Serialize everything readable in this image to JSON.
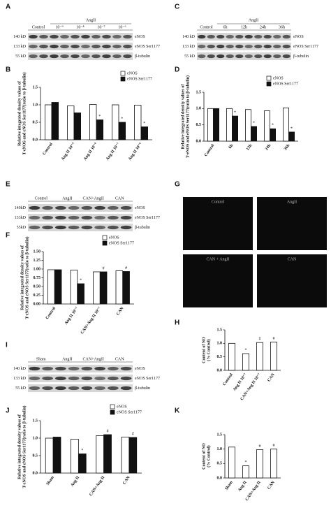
{
  "blots": [
    {
      "label": "A",
      "columns": [
        "Control"
      ],
      "group": {
        "label": "AngII",
        "columns": [
          "10⁻⁹",
          "10⁻⁸",
          "10⁻⁷",
          "10⁻⁶"
        ]
      },
      "left_labels": [
        "140 kD",
        "133 kD",
        "55 kD"
      ],
      "right_labels": [
        "eNOS",
        "eNOS Ser1177",
        "β-tubulin"
      ]
    },
    {
      "label": "C",
      "columns": [
        "Control"
      ],
      "group": {
        "label": "AngII",
        "columns": [
          "6h",
          "12h",
          "24h",
          "36h"
        ]
      },
      "left_labels": [
        "140 kD",
        "133 kD",
        "55 kD"
      ],
      "right_labels": [
        "eNOS",
        "eNOS Ser1177",
        "β-tubulin"
      ]
    },
    {
      "label": "E",
      "columns": [
        "Control",
        "AngII",
        "CAN+AngII",
        "CAN"
      ],
      "left_labels": [
        "140kD",
        "133kD",
        "55kD"
      ],
      "right_labels": [
        "eNOS",
        "eNOS Ser1177",
        "β-tubulin"
      ]
    },
    {
      "label": "I",
      "columns": [
        "Sham",
        "AngII",
        "CAN+AngII",
        "CAN"
      ],
      "left_labels": [
        "140 kD",
        "133 kD",
        "55 kD"
      ],
      "right_labels": [
        "eNOS",
        "eNOS Ser1177",
        "β-tubulin"
      ]
    }
  ],
  "images": {
    "label": "G",
    "captions": [
      "Control",
      "AngII",
      "CAN + AngII",
      "CAN"
    ]
  },
  "chart_data": [
    {
      "type": "bar",
      "label": "B",
      "ylabel": [
        "Relative integrated density values of",
        "T-eNOS and eNOS Ser1177(ratio to β-tubulin)"
      ],
      "categories": [
        "Control",
        "Ang II 10⁻⁹",
        "Ang II 10⁻⁸",
        "Ang II 10⁻⁷",
        "Ang II 10⁻⁶"
      ],
      "series": [
        {
          "name": "eNOS",
          "color": "#ffffff",
          "values": [
            1.0,
            0.97,
            1.01,
            1.0,
            0.99
          ],
          "labels": [
            null,
            null,
            null,
            null,
            null
          ]
        },
        {
          "name": "eNOS Ser1177",
          "color": "#111111",
          "values": [
            1.07,
            0.77,
            0.57,
            0.5,
            0.37
          ],
          "labels": [
            null,
            null,
            "*",
            "*",
            "*"
          ]
        }
      ],
      "ylim": [
        0,
        1.5
      ],
      "yticks": [
        {
          "value": 0,
          "label": "0.0"
        },
        {
          "value": 0.5,
          "label": "0.5"
        },
        {
          "value": 1,
          "label": "1.0"
        },
        {
          "value": 1.5,
          "label": "1.5"
        }
      ],
      "legend": "top-right"
    },
    {
      "type": "bar",
      "label": "D",
      "ylabel": [
        "Relative integrated density values of",
        "T-eNOS and eNOS Ser1177(ratio to β-tubulin)"
      ],
      "categories": [
        "Control",
        "6h",
        "12h",
        "24h",
        "36h"
      ],
      "series": [
        {
          "name": "eNOS",
          "color": "#ffffff",
          "values": [
            1.0,
            1.0,
            0.97,
            0.93,
            1.02
          ],
          "labels": [
            null,
            null,
            null,
            null,
            null
          ]
        },
        {
          "name": "eNOS Ser1177",
          "color": "#111111",
          "values": [
            1.0,
            0.77,
            0.45,
            0.38,
            0.28
          ],
          "labels": [
            null,
            "*",
            "*",
            "*",
            "*"
          ]
        }
      ],
      "ylim": [
        0,
        1.5
      ],
      "yticks": [
        {
          "value": 0,
          "label": "0.0"
        },
        {
          "value": 0.5,
          "label": "0.5"
        },
        {
          "value": 1,
          "label": "1.0"
        },
        {
          "value": 1.5,
          "label": "1.5"
        }
      ],
      "legend": "top-right"
    },
    {
      "type": "bar",
      "label": "F",
      "ylabel": [
        "Relative integrated density values of",
        "T-eNOS and eNOS Ser1177(ratio to β-tubulin)"
      ],
      "categories": [
        "Control",
        "Ang II 10⁻⁷",
        "CAN+Ang II 10⁻⁷",
        "CAN"
      ],
      "series": [
        {
          "name": "eNOS",
          "color": "#ffffff",
          "values": [
            0.98,
            0.97,
            0.92,
            0.95
          ],
          "labels": [
            null,
            null,
            null,
            null
          ]
        },
        {
          "name": "eNOS Ser1177",
          "color": "#111111",
          "values": [
            0.98,
            0.58,
            0.92,
            0.93
          ],
          "labels": [
            null,
            "*",
            "#",
            "#"
          ]
        }
      ],
      "ylim": [
        0,
        1.5
      ],
      "yticks": [
        {
          "value": 0,
          "label": "0.00"
        },
        {
          "value": 0.25,
          "label": "0.25"
        },
        {
          "value": 0.5,
          "label": "0.50"
        },
        {
          "value": 0.75,
          "label": "0.75"
        },
        {
          "value": 1,
          "label": "1.00"
        },
        {
          "value": 1.25,
          "label": "1.25"
        },
        {
          "value": 1.5,
          "label": "1.50"
        }
      ],
      "legend": "top-right"
    },
    {
      "type": "bar",
      "label": "H",
      "ylabel": [
        "Content of NO",
        "(% Control)"
      ],
      "categories": [
        "Control",
        "Ang II 10⁻⁷",
        "CAN+Ang II 10⁻⁷",
        "CAN"
      ],
      "values": [
        1.0,
        0.62,
        1.03,
        1.05
      ],
      "labels": [
        null,
        "*",
        "#",
        "#"
      ],
      "color": "#ffffff",
      "ylim": [
        0,
        1.5
      ],
      "yticks": [
        {
          "value": 0,
          "label": "0.0"
        },
        {
          "value": 0.5,
          "label": "0.5"
        },
        {
          "value": 1,
          "label": "1.0"
        },
        {
          "value": 1.5,
          "label": "1.5"
        }
      ]
    },
    {
      "type": "bar",
      "label": "J",
      "ylabel": [
        "Relative integrated density values of",
        "T-eNOS and eNOS Ser1177(ratio to β-tubulin)"
      ],
      "categories": [
        "Sham",
        "Ang II",
        "CAN+Ang II",
        "CAN"
      ],
      "series": [
        {
          "name": "eNOS",
          "color": "#ffffff",
          "values": [
            1.0,
            0.97,
            1.07,
            1.03
          ],
          "labels": [
            null,
            null,
            null,
            null
          ]
        },
        {
          "name": "eNOS Ser1177",
          "color": "#111111",
          "values": [
            1.03,
            0.55,
            1.1,
            1.02
          ],
          "labels": [
            null,
            "*",
            "#",
            "#"
          ]
        }
      ],
      "ylim": [
        0,
        1.5
      ],
      "yticks": [
        {
          "value": 0,
          "label": "0.0"
        },
        {
          "value": 0.5,
          "label": "0.5"
        },
        {
          "value": 1,
          "label": "1.0"
        },
        {
          "value": 1.5,
          "label": "1.5"
        }
      ],
      "legend": "top-right"
    },
    {
      "type": "bar",
      "label": "K",
      "ylabel": [
        "Content of NO",
        "(% Control)"
      ],
      "categories": [
        "Sham",
        "Ang II",
        "CAN+Ang II",
        "CAN"
      ],
      "values": [
        1.07,
        0.42,
        0.98,
        1.0
      ],
      "labels": [
        null,
        "*",
        "#",
        "#"
      ],
      "color": "#ffffff",
      "ylim": [
        0,
        1.5
      ],
      "yticks": [
        {
          "value": 0,
          "label": "0.0"
        },
        {
          "value": 0.5,
          "label": "0.5"
        },
        {
          "value": 1,
          "label": "1.0"
        },
        {
          "value": 1.5,
          "label": "1.5"
        }
      ]
    }
  ]
}
